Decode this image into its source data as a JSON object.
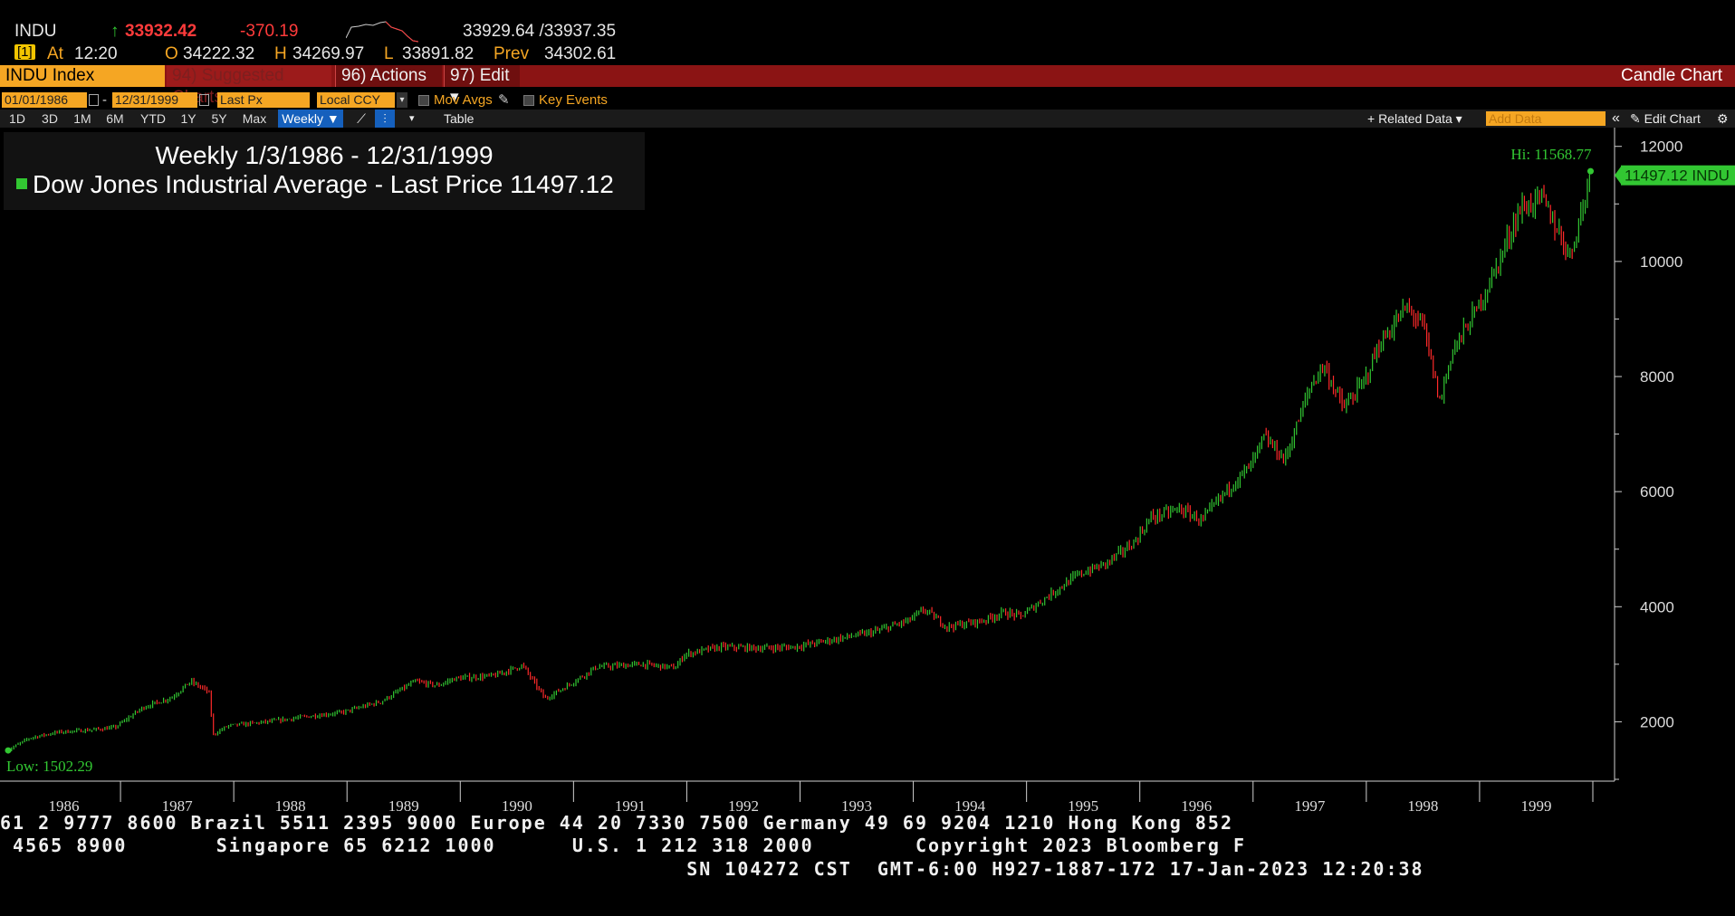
{
  "quote": {
    "ticker": "INDU",
    "arrow": "↑",
    "last": "33932.42",
    "change": "-370.19",
    "bid_ask": "33929.64 /33937.35",
    "at_label": "At",
    "time": "12:20",
    "open_label": "O",
    "open": "34222.32",
    "high_label": "H",
    "high": "34269.97",
    "low_label": "L",
    "low": "33891.82",
    "prev_label": "Prev",
    "prev": "34302.61",
    "icon_text": "[1]"
  },
  "toolbar": {
    "security": "INDU Index",
    "suggested": "94) Suggested Charts",
    "actions": "96) Actions ▾",
    "edit": "97) Edit ▾",
    "chart_type": "Candle Chart"
  },
  "dates": {
    "start": "01/01/1986",
    "dash": "-",
    "end": "12/31/1999",
    "field": "Last Px",
    "currency": "Local CCY",
    "mov_avgs": "Mov Avgs",
    "key_events": "Key Events"
  },
  "ranges": {
    "buttons": [
      "1D",
      "3D",
      "1M",
      "6M",
      "YTD",
      "1Y",
      "5Y",
      "Max"
    ],
    "frequency": "Weekly ▼",
    "table": "Table",
    "related": "+ Related Data ▾",
    "add_data": "Add Data",
    "collapse": "«",
    "edit_chart": "✎ Edit Chart",
    "settings": "⚙"
  },
  "legend": {
    "title": "Weekly 1/3/1986 - 12/31/1999",
    "series": "Dow Jones Industrial Average - Last Price 11497.12"
  },
  "chart_data": {
    "type": "candlestick",
    "frequency": "Weekly",
    "x": [
      "1986",
      "1987",
      "1988",
      "1989",
      "1990",
      "1991",
      "1992",
      "1993",
      "1994",
      "1995",
      "1996",
      "1997",
      "1998",
      "1999"
    ],
    "close_points": [
      [
        1986.0,
        1502
      ],
      [
        1986.2,
        1720
      ],
      [
        1986.45,
        1820
      ],
      [
        1986.75,
        1860
      ],
      [
        1986.95,
        1900
      ],
      [
        1987.2,
        2250
      ],
      [
        1987.45,
        2420
      ],
      [
        1987.62,
        2700
      ],
      [
        1987.78,
        2520
      ],
      [
        1987.82,
        1780
      ],
      [
        1987.95,
        1930
      ],
      [
        1988.3,
        2000
      ],
      [
        1988.6,
        2080
      ],
      [
        1988.95,
        2160
      ],
      [
        1989.3,
        2350
      ],
      [
        1989.6,
        2700
      ],
      [
        1989.8,
        2630
      ],
      [
        1989.95,
        2750
      ],
      [
        1990.3,
        2800
      ],
      [
        1990.55,
        2980
      ],
      [
        1990.75,
        2400
      ],
      [
        1990.95,
        2630
      ],
      [
        1991.2,
        2950
      ],
      [
        1991.6,
        3000
      ],
      [
        1991.9,
        2940
      ],
      [
        1991.98,
        3170
      ],
      [
        1992.3,
        3300
      ],
      [
        1992.65,
        3280
      ],
      [
        1992.95,
        3300
      ],
      [
        1993.3,
        3430
      ],
      [
        1993.65,
        3560
      ],
      [
        1993.95,
        3750
      ],
      [
        1994.1,
        3950
      ],
      [
        1994.3,
        3650
      ],
      [
        1994.6,
        3750
      ],
      [
        1994.8,
        3900
      ],
      [
        1994.95,
        3834
      ],
      [
        1995.2,
        4200
      ],
      [
        1995.45,
        4550
      ],
      [
        1995.7,
        4750
      ],
      [
        1995.95,
        5117
      ],
      [
        1996.1,
        5550
      ],
      [
        1996.35,
        5700
      ],
      [
        1996.55,
        5500
      ],
      [
        1996.8,
        6100
      ],
      [
        1996.98,
        6448
      ],
      [
        1997.1,
        6950
      ],
      [
        1997.28,
        6550
      ],
      [
        1997.5,
        7800
      ],
      [
        1997.62,
        8200
      ],
      [
        1997.8,
        7450
      ],
      [
        1997.98,
        7908
      ],
      [
        1998.1,
        8500
      ],
      [
        1998.35,
        9200
      ],
      [
        1998.5,
        8900
      ],
      [
        1998.65,
        7550
      ],
      [
        1998.75,
        8400
      ],
      [
        1998.98,
        9181
      ],
      [
        1999.15,
        9900
      ],
      [
        1999.35,
        10900
      ],
      [
        1999.55,
        11100
      ],
      [
        1999.65,
        10700
      ],
      [
        1999.8,
        10100
      ],
      [
        1999.98,
        11497
      ]
    ],
    "y_ticks": [
      2000,
      4000,
      6000,
      8000,
      10000,
      12000
    ],
    "ylim": [
      1000,
      12200
    ],
    "low_label": "Low: 1502.29",
    "high_label": "Hi: 11568.77",
    "last_tag": "11497.12 INDU",
    "up_color": "#32c732",
    "down_color": "#ff2a2a"
  },
  "ticker_lines": [
    "61 2 9777 8600 Brazil 5511 2395 9000 Europe 44 20 7330 7500 Germany 49 69 9204 1210 Hong Kong 852",
    " 4565 8900       Singapore 65 6212 1000      U.S. 1 212 318 2000        Copyright 2023 Bloomberg F",
    "                                                      SN 104272 CST  GMT-6:00 H927-1887-172 17-Jan-2023 12:20:38"
  ]
}
